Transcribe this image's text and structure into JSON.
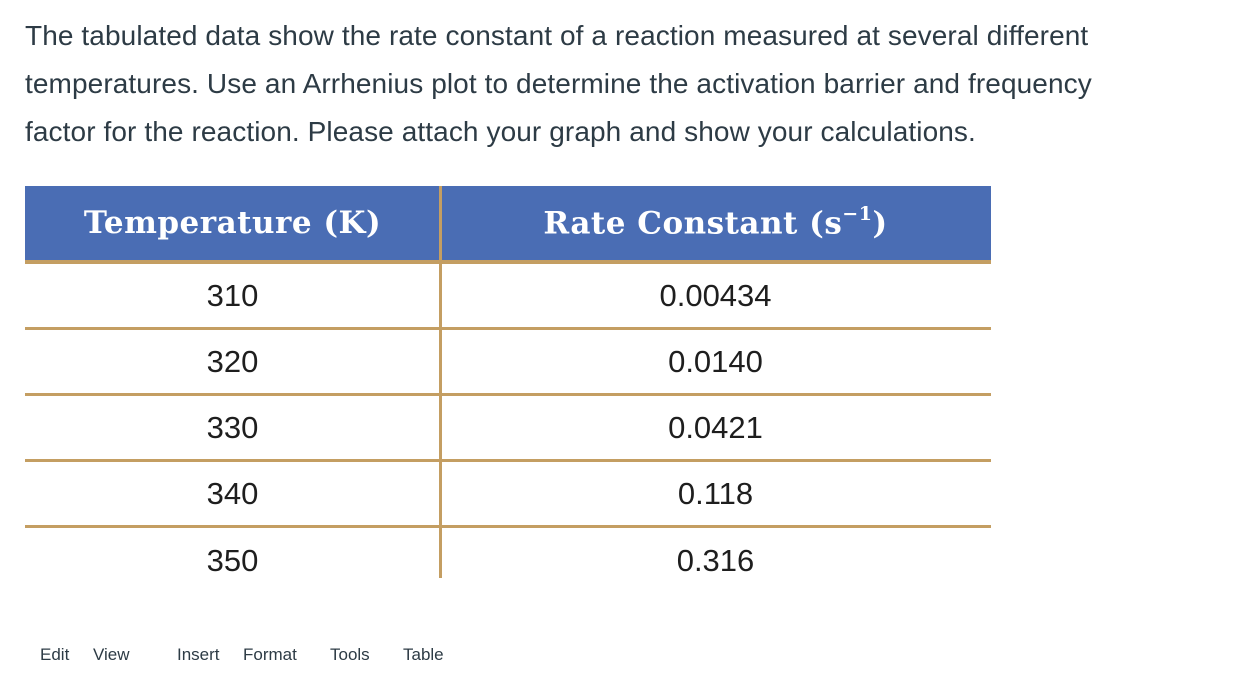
{
  "question": {
    "lines": [
      "The tabulated data show the rate constant of a reaction measured at several different",
      "temperatures. Use an Arrhenius plot to determine the activation barrier and frequency",
      "factor for the reaction. Please attach your graph and show your calculations."
    ]
  },
  "table": {
    "headers": {
      "temperature": "Temperature (K)",
      "rate_pre": "Rate Constant (s",
      "rate_sup": "−1",
      "rate_post": ")"
    },
    "rows": [
      {
        "temperature": "310",
        "rate_constant": "0.00434"
      },
      {
        "temperature": "320",
        "rate_constant": "0.0140"
      },
      {
        "temperature": "330",
        "rate_constant": "0.0421"
      },
      {
        "temperature": "340",
        "rate_constant": "0.118"
      },
      {
        "temperature": "350",
        "rate_constant": "0.316"
      }
    ],
    "colors": {
      "header_background": "#4a6db4",
      "header_text": "#ffffff",
      "border": "#c49e62",
      "body_text": "#1e1e1e"
    }
  },
  "editor_menu": {
    "items": [
      {
        "label": "Edit"
      },
      {
        "label": "View"
      },
      {
        "label": "Insert"
      },
      {
        "label": "Format"
      },
      {
        "label": "Tools"
      },
      {
        "label": "Table"
      }
    ]
  },
  "chart_data": {
    "type": "table",
    "columns": [
      "Temperature (K)",
      "Rate Constant (s−1)"
    ],
    "rows": [
      [
        310,
        0.00434
      ],
      [
        320,
        0.014
      ],
      [
        330,
        0.0421
      ],
      [
        340,
        0.118
      ],
      [
        350,
        0.316
      ]
    ]
  }
}
